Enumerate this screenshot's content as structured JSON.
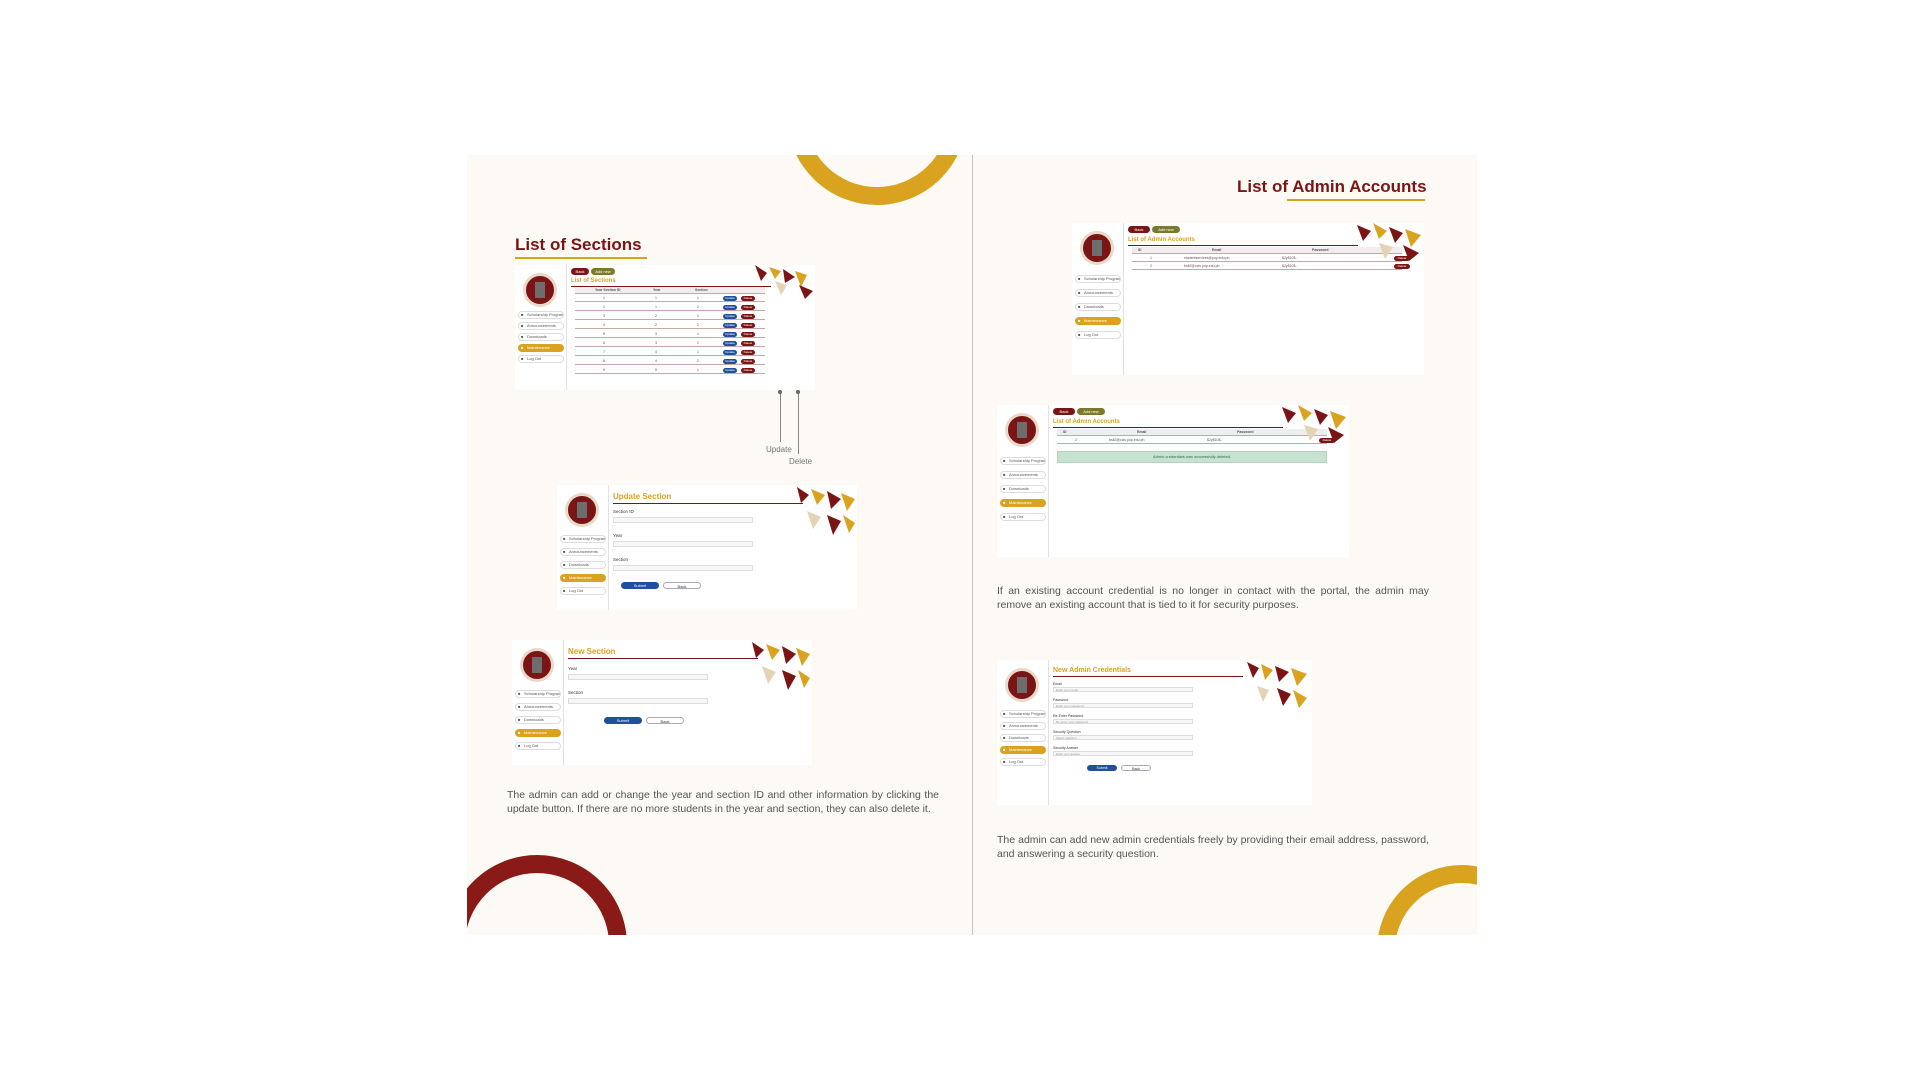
{
  "left_page": {
    "heading": "List of Sections",
    "callouts": {
      "update": "Update",
      "delete": "Delete"
    },
    "paragraph": "The admin can add or change the year and section ID and other information by clicking the update button. If there are no more students in the year and section, they can also delete it."
  },
  "right_page": {
    "heading_prefix": "List of ",
    "heading_emph": "Admin Accounts",
    "paragraph_1": "If an existing account credential is no longer in contact with the portal, the admin may remove an existing account that is tied to it for security purposes.",
    "paragraph_2": "The admin can add new admin credentials freely by providing their email address, password, and answering a security question."
  },
  "mock": {
    "nav_items": [
      "Scholarship Programs",
      "Announcements",
      "Downloads",
      "Maintenance",
      "Log Out"
    ],
    "back": "Back",
    "add_new": "Add new",
    "list_sections_title": "List of Sections",
    "list_sections_cols": [
      "Year Section ID",
      "Year",
      "Section"
    ],
    "list_sections_rows": [
      [
        "1",
        "1",
        "1"
      ],
      [
        "2",
        "1",
        "2"
      ],
      [
        "3",
        "2",
        "1"
      ],
      [
        "4",
        "2",
        "2"
      ],
      [
        "5",
        "3",
        "1"
      ],
      [
        "6",
        "3",
        "2"
      ],
      [
        "7",
        "4",
        "1"
      ],
      [
        "8",
        "4",
        "2"
      ],
      [
        "9",
        "5",
        "1"
      ]
    ],
    "update_label": "Update",
    "delete_label": "Delete",
    "update_section_title": "Update Section",
    "new_section_title": "New Section",
    "field_section_id": "Section ID",
    "field_year": "Year",
    "field_section": "Section",
    "submit": "Submit",
    "back_btn": "Back",
    "list_admin_title": "List of Admin Accounts",
    "admin_cols": [
      "ID",
      "Email",
      "Password"
    ],
    "admin_rows_a": [
      [
        "1",
        "studentservices@pup.edu.ph",
        "$2y$10$..."
      ],
      [
        "2",
        "bsit2@ccis.pup.edu.ph",
        "$2y$10$..."
      ]
    ],
    "admin_rows_b": [
      [
        "2",
        "bsit2@ccis.pup.edu.ph",
        "$2y$10$..."
      ]
    ],
    "success_msg": "Admin credentials was successfully deleted.",
    "new_admin_title": "New Admin Credentials",
    "field_email": "Email",
    "ph_email": "Enter your email",
    "field_password": "Password",
    "ph_password": "Enter your password",
    "field_reenter": "Re-Enter Password",
    "ph_reenter": "Re-enter your password",
    "field_question": "Security Question",
    "ph_question": "Select question",
    "field_answer": "Security Answer",
    "ph_answer": "Enter your answer"
  },
  "colors": {
    "maroon": "#7b1414",
    "gold": "#d9a21f",
    "blue": "#1f4f9e"
  }
}
